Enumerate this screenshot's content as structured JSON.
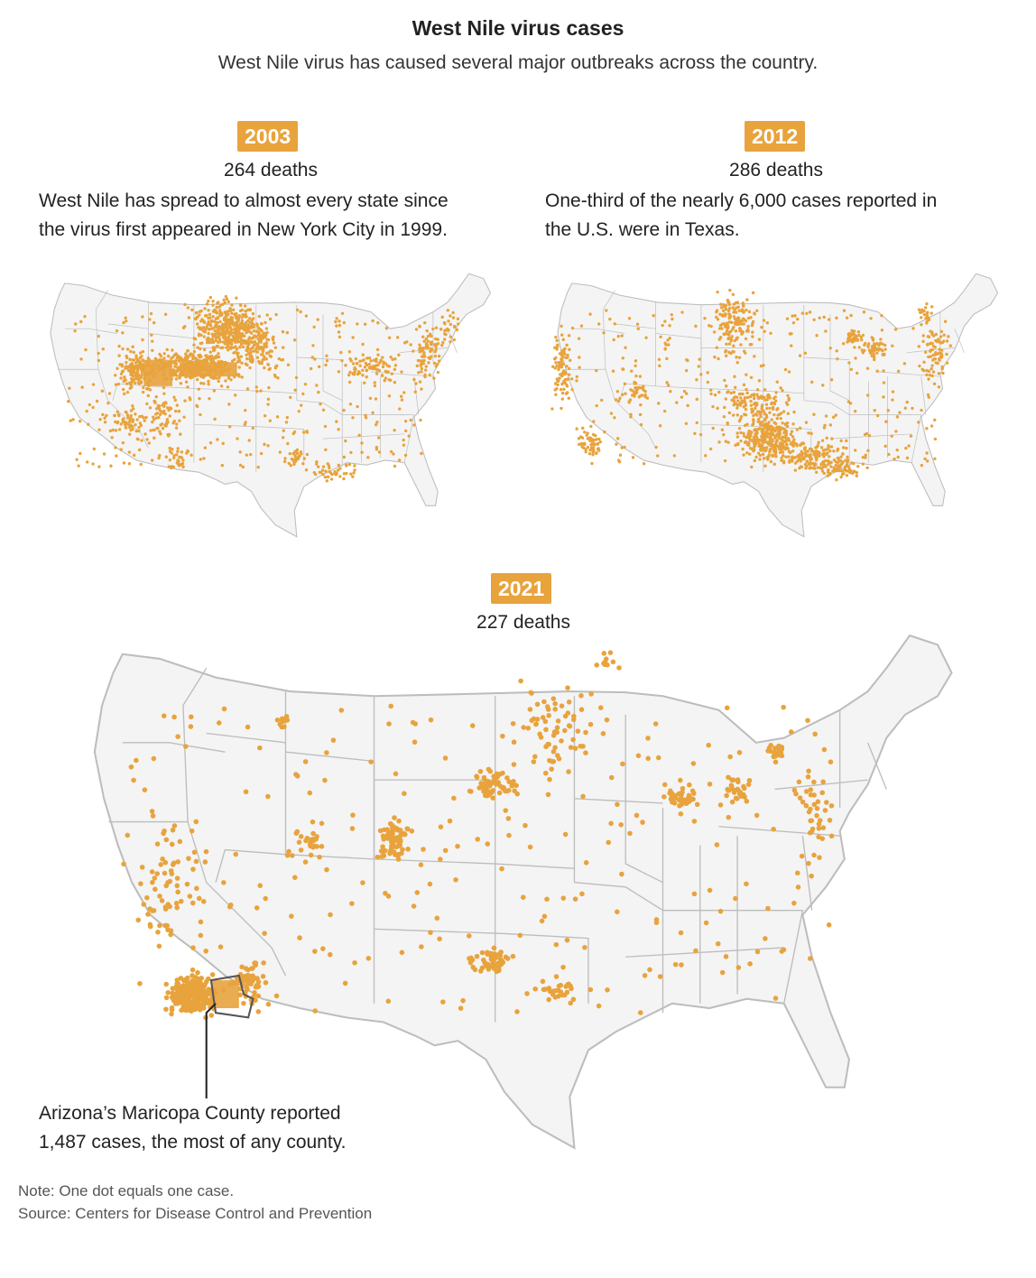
{
  "title": "West Nile virus cases",
  "subtitle": "West Nile virus has caused several major outbreaks across the country.",
  "panels": [
    {
      "year": "2003",
      "deaths": "264 deaths",
      "text_line1": "West Nile has spread to almost every state since",
      "text_line2": "the virus first appeared in New York City in 1999."
    },
    {
      "year": "2012",
      "deaths": "286 deaths",
      "text_line1": "One-third of the nearly 6,000 cases reported in",
      "text_line2": "the U.S. were in Texas."
    },
    {
      "year": "2021",
      "deaths": "227 deaths"
    }
  ],
  "annotation": {
    "line1": "Arizona’s Maricopa County reported",
    "line2": "1,487 cases, the most of any county."
  },
  "note": "Note: One dot equals one case.",
  "source": "Source: Centers for Disease Control and Prevention",
  "colors": {
    "dot": "#e8a33d",
    "badge": "#e8a33d",
    "land": "#f4f4f4",
    "border": "#bdbdbd"
  }
}
